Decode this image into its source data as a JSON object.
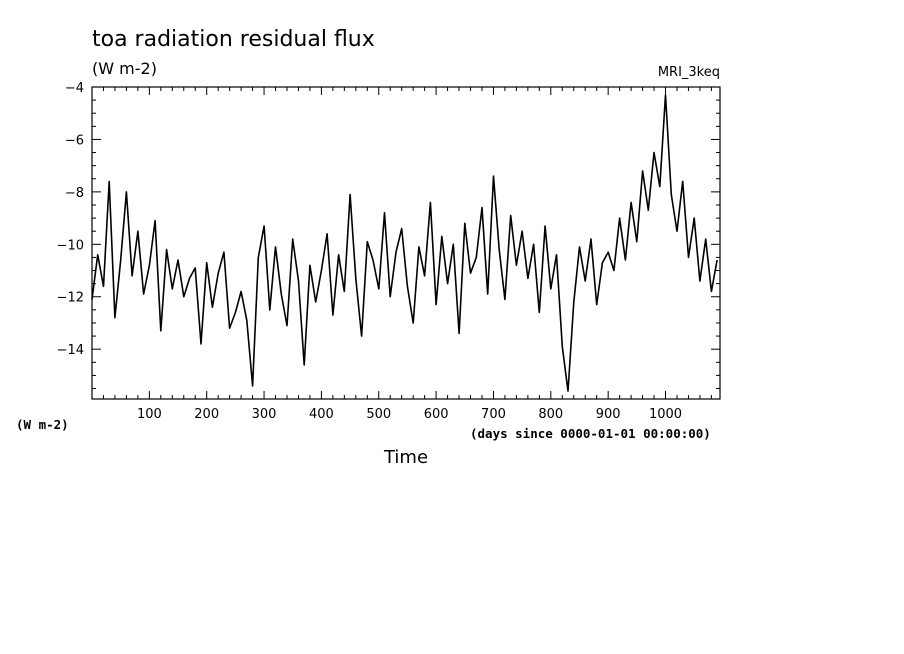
{
  "chart_data": {
    "type": "line",
    "title": "toa radiation residual flux",
    "units_label": "(W m-2)",
    "model": "MRI_3keq",
    "xlabel": "Time",
    "x_units": "(days since 0000-01-01 00:00:00)",
    "ylabel_lower": "(W m-2)",
    "xlim": [
      0,
      1095
    ],
    "ylim": [
      -15.9,
      -4
    ],
    "x_ticks": [
      100,
      200,
      300,
      400,
      500,
      600,
      700,
      800,
      900,
      1000
    ],
    "y_ticks": [
      -4,
      -6,
      -8,
      -10,
      -12,
      -14
    ],
    "grid": false,
    "line_color": "#000000",
    "series": [
      {
        "x": [
          0,
          10,
          20,
          30,
          40,
          50,
          60,
          70,
          80,
          90,
          100,
          110,
          120,
          130,
          140,
          150,
          160,
          170,
          180,
          190,
          200,
          210,
          220,
          230,
          240,
          250,
          260,
          270,
          280,
          290,
          300,
          310,
          320,
          330,
          340,
          350,
          360,
          370,
          380,
          390,
          400,
          410,
          420,
          430,
          440,
          450,
          460,
          470,
          480,
          490,
          500,
          510,
          520,
          530,
          540,
          550,
          560,
          570,
          580,
          590,
          600,
          610,
          620,
          630,
          640,
          650,
          660,
          670,
          680,
          690,
          700,
          710,
          720,
          730,
          740,
          750,
          760,
          770,
          780,
          790,
          800,
          810,
          820,
          830,
          840,
          850,
          860,
          870,
          880,
          890,
          900,
          910,
          920,
          930,
          940,
          950,
          960,
          970,
          980,
          990,
          1000,
          1010,
          1020,
          1030,
          1040,
          1050,
          1060,
          1070,
          1080,
          1090
        ],
        "values": [
          -12.1,
          -10.4,
          -11.6,
          -7.6,
          -12.8,
          -10.6,
          -8.0,
          -11.2,
          -9.5,
          -11.9,
          -10.8,
          -9.1,
          -13.3,
          -10.2,
          -11.7,
          -10.6,
          -12.0,
          -11.3,
          -10.9,
          -13.8,
          -10.7,
          -12.4,
          -11.1,
          -10.3,
          -13.2,
          -12.6,
          -11.8,
          -12.9,
          -15.4,
          -10.5,
          -9.3,
          -12.5,
          -10.1,
          -11.9,
          -13.1,
          -9.8,
          -11.4,
          -14.6,
          -10.8,
          -12.2,
          -11.0,
          -9.6,
          -12.7,
          -10.4,
          -11.8,
          -8.1,
          -11.3,
          -13.5,
          -9.9,
          -10.6,
          -11.7,
          -8.8,
          -12.0,
          -10.3,
          -9.4,
          -11.6,
          -13.0,
          -10.1,
          -11.2,
          -8.4,
          -12.3,
          -9.7,
          -11.5,
          -10.0,
          -13.4,
          -9.2,
          -11.1,
          -10.5,
          -8.6,
          -11.9,
          -7.4,
          -10.2,
          -12.1,
          -8.9,
          -10.8,
          -9.5,
          -11.3,
          -10.0,
          -12.6,
          -9.3,
          -11.7,
          -10.4,
          -13.9,
          -15.6,
          -12.2,
          -10.1,
          -11.4,
          -9.8,
          -12.3,
          -10.7,
          -10.3,
          -11.0,
          -9.0,
          -10.6,
          -8.4,
          -9.9,
          -7.2,
          -8.7,
          -6.5,
          -7.8,
          -4.3,
          -8.1,
          -9.5,
          -7.6,
          -10.5,
          -9.0,
          -11.4,
          -9.8,
          -11.8,
          -10.6
        ]
      }
    ]
  }
}
